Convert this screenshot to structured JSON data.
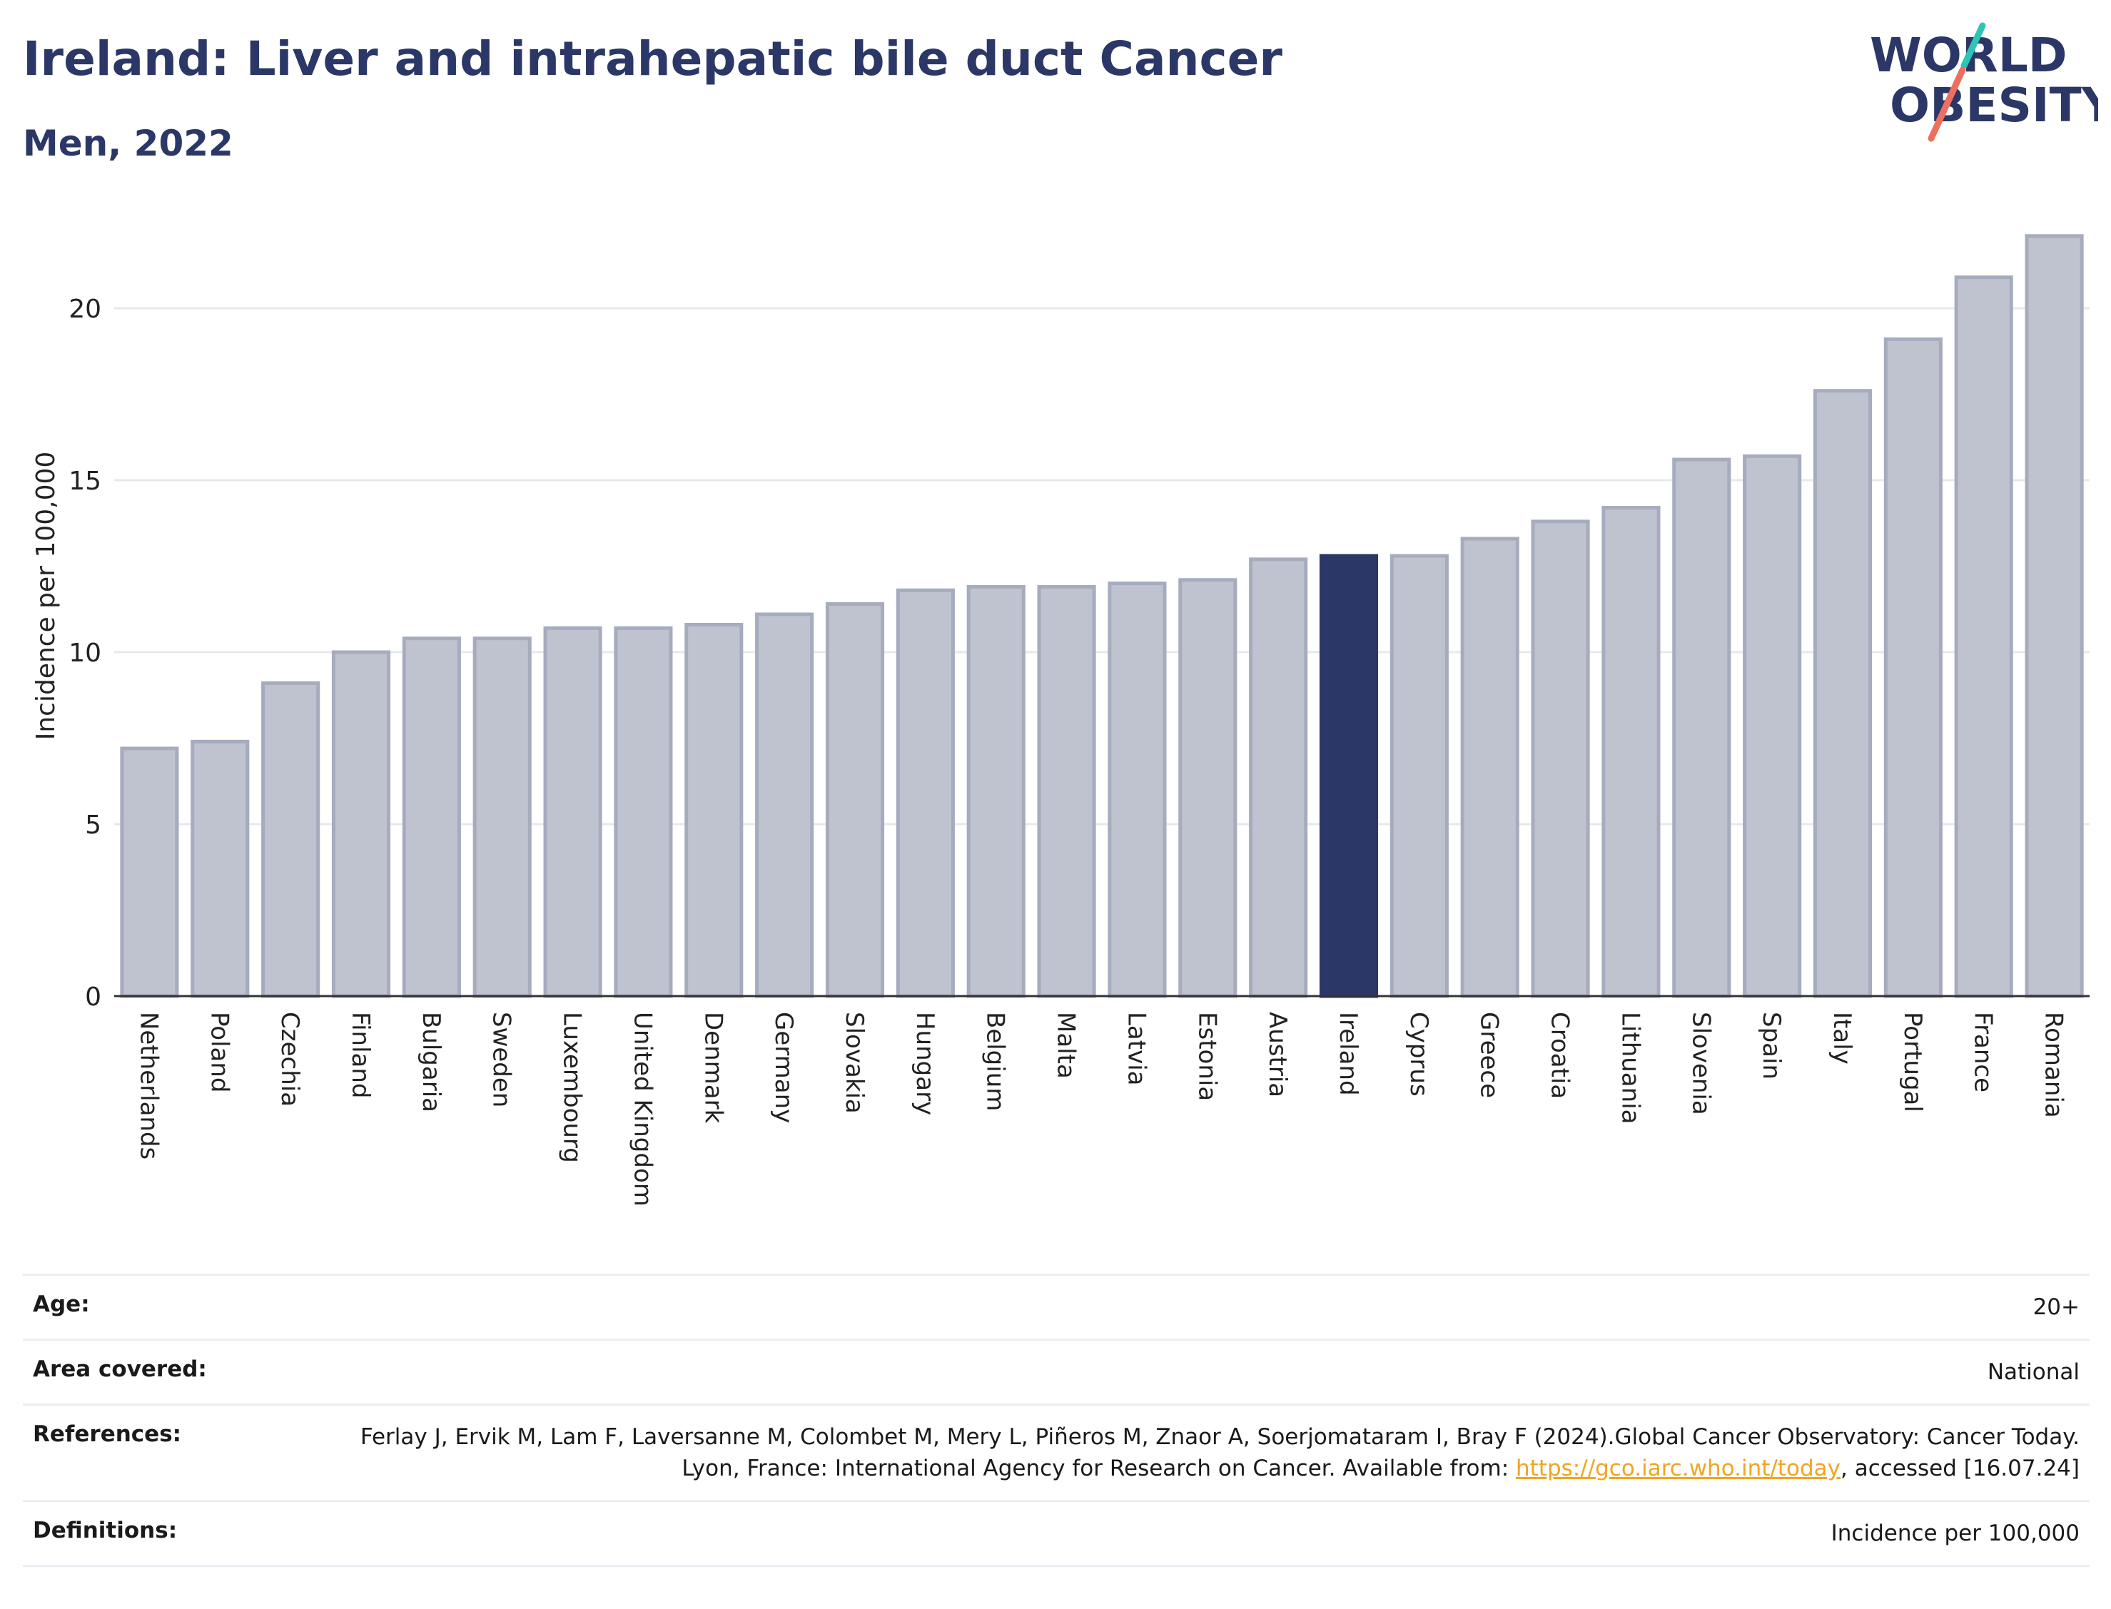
{
  "header": {
    "title": "Ireland: Liver and intrahepatic bile duct Cancer",
    "subtitle": "Men, 2022"
  },
  "logo": {
    "line1": "WORLD",
    "line2": "OBESITY",
    "colors": {
      "text": "#2b3766",
      "slash_teal": "#2ec4b6",
      "slash_coral": "#ef6f5e"
    }
  },
  "colors": {
    "bar_default": "#bfc3d0",
    "bar_default_stroke": "#a6abbe",
    "bar_highlight": "#2b3766",
    "axis": "#333333",
    "grid": "#e6e8ee",
    "title": "#2b3766"
  },
  "chart_data": {
    "type": "bar",
    "title": "Ireland: Liver and intrahepatic bile duct Cancer",
    "subtitle": "Men, 2022",
    "xlabel": "",
    "ylabel": "Incidence per 100,000",
    "ylim": [
      0,
      22.5
    ],
    "yticks": [
      0,
      5,
      10,
      15,
      20
    ],
    "grid": true,
    "highlight": "Ireland",
    "categories": [
      "Netherlands",
      "Poland",
      "Czechia",
      "Finland",
      "Bulgaria",
      "Sweden",
      "Luxembourg",
      "United Kingdom",
      "Denmark",
      "Germany",
      "Slovakia",
      "Hungary",
      "Belgium",
      "Malta",
      "Latvia",
      "Estonia",
      "Austria",
      "Ireland",
      "Cyprus",
      "Greece",
      "Croatia",
      "Lithuania",
      "Slovenia",
      "Spain",
      "Italy",
      "Portugal",
      "France",
      "Romania"
    ],
    "values": [
      7.2,
      7.4,
      9.1,
      10.0,
      10.4,
      10.4,
      10.7,
      10.7,
      10.8,
      11.1,
      11.4,
      11.8,
      11.9,
      11.9,
      12.0,
      12.1,
      12.7,
      12.8,
      12.8,
      13.3,
      13.8,
      14.2,
      15.6,
      15.7,
      17.6,
      19.1,
      20.9,
      22.1
    ]
  },
  "meta": {
    "age_label": "Age:",
    "age_value": "20+",
    "area_label": "Area covered:",
    "area_value": "National",
    "references_label": "References:",
    "references_text_1": "Ferlay J, Ervik M, Lam F, Laversanne M, Colombet M, Mery L, Piñeros M, Znaor A, Soerjomataram I, Bray F (2024).Global Cancer Observatory: Cancer Today. Lyon, France: International Agency for Research on Cancer. Available from: ",
    "references_link": "https://gco.iarc.who.int/today",
    "references_text_2": ", accessed [16.07.24]",
    "definitions_label": "Definitions:",
    "definitions_value": "Incidence per 100,000"
  }
}
